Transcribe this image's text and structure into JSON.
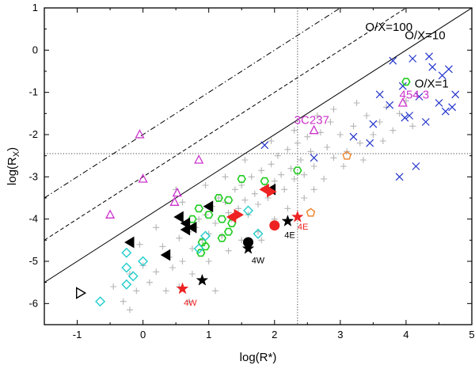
{
  "chart_data": {
    "type": "scatter",
    "title": "",
    "xlabel": "log(R*)",
    "ylabel": "log(R_X)",
    "ylabel_main": "log(R",
    "ylabel_sub": "X",
    "ylabel_close": ")",
    "xlim": [
      -1.5,
      5
    ],
    "ylim": [
      -6.5,
      1
    ],
    "xticks": [
      -1,
      0,
      1,
      2,
      3,
      4,
      5
    ],
    "xtick_labels": [
      "-1",
      "0",
      "1",
      "2",
      "3",
      "4",
      "5"
    ],
    "yticks": [
      1,
      0,
      -1,
      -2,
      -3,
      -4,
      -5,
      -6
    ],
    "ytick_labels": [
      "1",
      "0",
      "-1",
      "-2",
      "-3",
      "-4",
      "-5",
      "-6"
    ],
    "grid": false,
    "colors": {
      "gray": "#b4b4b4",
      "blue": "#2233cc",
      "magenta": "#cc33cc",
      "green": "#22cc22",
      "cyan": "#22cccc",
      "orange": "#ee8833",
      "red": "#ee2222",
      "black": "#000000"
    },
    "ratio_lines": [
      {
        "name": "O/X=100",
        "label": "O/X=100",
        "intercept": -2,
        "style": "dashdot"
      },
      {
        "name": "O/X=10",
        "label": "O/X=10",
        "intercept": -3,
        "style": "dashed"
      },
      {
        "name": "O/X=1",
        "label": "O/X=1",
        "intercept": -4,
        "style": "solid"
      }
    ],
    "ref_lines": {
      "vertical_x": 2.35,
      "horizontal_y": -2.45
    },
    "series": [
      {
        "name": "gray-plus",
        "marker": "plus",
        "color": "#b4b4b4",
        "points": [
          [
            -0.45,
            -5.6
          ],
          [
            -0.3,
            -5.95
          ],
          [
            -0.2,
            -5.3
          ],
          [
            -0.1,
            -5.7
          ],
          [
            0.0,
            -5.1
          ],
          [
            0.1,
            -5.5
          ],
          [
            0.2,
            -5.25
          ],
          [
            0.3,
            -4.65
          ],
          [
            0.4,
            -4.9
          ],
          [
            0.45,
            -5.15
          ],
          [
            0.55,
            -4.45
          ],
          [
            0.6,
            -5.0
          ],
          [
            0.7,
            -4.3
          ],
          [
            0.75,
            -4.7
          ],
          [
            0.8,
            -4.2
          ],
          [
            0.85,
            -4.0
          ],
          [
            0.9,
            -4.5
          ],
          [
            0.95,
            -3.9
          ],
          [
            1.0,
            -4.35
          ],
          [
            1.05,
            -3.7
          ],
          [
            1.1,
            -4.1
          ],
          [
            1.15,
            -3.5
          ],
          [
            1.2,
            -4.4
          ],
          [
            1.25,
            -3.6
          ],
          [
            1.3,
            -3.85
          ],
          [
            1.35,
            -4.0
          ],
          [
            1.4,
            -3.3
          ],
          [
            1.45,
            -3.75
          ],
          [
            1.5,
            -3.2
          ],
          [
            1.55,
            -3.55
          ],
          [
            1.6,
            -3.9
          ],
          [
            1.65,
            -3.0
          ],
          [
            1.7,
            -3.4
          ],
          [
            1.75,
            -3.65
          ],
          [
            1.8,
            -2.85
          ],
          [
            1.85,
            -3.25
          ],
          [
            1.9,
            -3.5
          ],
          [
            1.95,
            -2.7
          ],
          [
            2.0,
            -3.1
          ],
          [
            2.05,
            -2.5
          ],
          [
            2.1,
            -2.95
          ],
          [
            2.15,
            -3.3
          ],
          [
            2.2,
            -2.35
          ],
          [
            2.25,
            -2.8
          ],
          [
            2.3,
            -3.05
          ],
          [
            2.35,
            -2.2
          ],
          [
            2.4,
            -2.6
          ],
          [
            2.45,
            -2.95
          ],
          [
            2.5,
            -2.05
          ],
          [
            2.55,
            -2.4
          ],
          [
            2.6,
            -2.75
          ],
          [
            2.7,
            -1.95
          ],
          [
            2.8,
            -2.3
          ],
          [
            2.9,
            -2.55
          ],
          [
            3.0,
            -2.0
          ],
          [
            3.1,
            -2.4
          ],
          [
            3.2,
            -1.8
          ],
          [
            3.3,
            -2.2
          ],
          [
            3.4,
            -1.55
          ],
          [
            3.5,
            -2.0
          ],
          [
            3.6,
            -1.7
          ],
          [
            3.7,
            -1.35
          ],
          [
            3.8,
            -1.9
          ],
          [
            3.9,
            -1.5
          ],
          [
            4.0,
            -1.2
          ],
          [
            4.1,
            -1.8
          ],
          [
            0.35,
            -5.7
          ],
          [
            0.55,
            -5.6
          ],
          [
            0.75,
            -5.3
          ],
          [
            1.0,
            -5.0
          ],
          [
            1.3,
            -4.75
          ],
          [
            1.5,
            -4.5
          ],
          [
            1.75,
            -4.3
          ],
          [
            2.0,
            -4.0
          ],
          [
            2.2,
            -3.75
          ],
          [
            2.45,
            -3.5
          ],
          [
            2.6,
            -3.3
          ],
          [
            1.55,
            -2.6
          ],
          [
            1.25,
            -3.0
          ],
          [
            1.95,
            -2.15
          ],
          [
            2.3,
            -1.9
          ],
          [
            2.85,
            -1.7
          ],
          [
            0.95,
            -3.2
          ],
          [
            0.6,
            -3.6
          ],
          [
            0.2,
            -4.2
          ],
          [
            -0.05,
            -4.6
          ],
          [
            0.7,
            -5.95
          ],
          [
            1.1,
            -5.7
          ],
          [
            -0.2,
            -6.15
          ],
          [
            1.8,
            -4.5
          ],
          [
            2.75,
            -3.05
          ],
          [
            3.05,
            -2.75
          ],
          [
            3.35,
            -2.6
          ],
          [
            3.65,
            -2.15
          ],
          [
            0.5,
            -3.3
          ],
          [
            2.9,
            -1.4
          ],
          [
            3.25,
            -1.25
          ],
          [
            2.65,
            -1.55
          ]
        ]
      },
      {
        "name": "blue-x",
        "marker": "x",
        "color": "#2233cc",
        "points": [
          [
            3.8,
            -0.25
          ],
          [
            4.1,
            -0.2
          ],
          [
            4.35,
            -0.15
          ],
          [
            4.4,
            -0.4
          ],
          [
            4.55,
            -0.6
          ],
          [
            4.65,
            -0.45
          ],
          [
            3.95,
            -0.85
          ],
          [
            3.6,
            -1.05
          ],
          [
            4.2,
            -1.1
          ],
          [
            3.75,
            -1.3
          ],
          [
            4.5,
            -1.25
          ],
          [
            4.75,
            -1.05
          ],
          [
            4.05,
            -1.55
          ],
          [
            4.3,
            -1.7
          ],
          [
            4.6,
            -1.45
          ],
          [
            4.7,
            -1.35
          ],
          [
            3.98,
            -1.6
          ],
          [
            3.5,
            -1.75
          ],
          [
            3.2,
            -2.05
          ],
          [
            3.45,
            -2.2
          ],
          [
            4.15,
            -2.75
          ],
          [
            1.85,
            -2.25
          ],
          [
            2.6,
            -2.55
          ],
          [
            3.9,
            -3.0
          ]
        ]
      },
      {
        "name": "magenta-triangle",
        "marker": "triangle-up",
        "color": "#cc33cc",
        "points": [
          [
            -0.05,
            -2.0
          ],
          [
            0.0,
            -3.05
          ],
          [
            0.85,
            -2.6
          ],
          [
            0.52,
            -3.38
          ],
          [
            0.48,
            -3.6
          ],
          [
            -0.5,
            -3.9
          ],
          [
            2.6,
            -1.9
          ],
          [
            3.95,
            -1.25
          ]
        ]
      },
      {
        "name": "green-hexagon",
        "marker": "hexagon",
        "color": "#22cc22",
        "points": [
          [
            4.0,
            -0.75
          ],
          [
            2.35,
            -2.85
          ],
          [
            1.5,
            -3.05
          ],
          [
            1.85,
            -3.1
          ],
          [
            1.15,
            -3.5
          ],
          [
            1.3,
            -3.55
          ],
          [
            0.85,
            -3.75
          ],
          [
            0.75,
            -4.0
          ],
          [
            1.0,
            -3.9
          ],
          [
            1.2,
            -4.0
          ],
          [
            1.35,
            -4.1
          ],
          [
            1.3,
            -4.3
          ],
          [
            1.2,
            -4.45
          ],
          [
            0.9,
            -4.55
          ],
          [
            0.88,
            -4.8
          ],
          [
            0.95,
            -4.65
          ]
        ]
      },
      {
        "name": "cyan-diamond",
        "marker": "diamond",
        "color": "#22cccc",
        "points": [
          [
            1.6,
            -3.8
          ],
          [
            1.75,
            -4.35
          ],
          [
            0.95,
            -4.4
          ],
          [
            0.85,
            -4.7
          ],
          [
            -0.25,
            -4.8
          ],
          [
            0.0,
            -5.0
          ],
          [
            -0.25,
            -5.15
          ],
          [
            -0.15,
            -5.35
          ],
          [
            -0.25,
            -5.55
          ],
          [
            -0.65,
            -5.95
          ]
        ]
      },
      {
        "name": "black-tri-left",
        "marker": "triangle-left-filled",
        "color": "#000000",
        "points": [
          [
            1.95,
            -3.3
          ],
          [
            1.0,
            -3.7
          ],
          [
            0.55,
            -3.95
          ],
          [
            0.65,
            -4.1
          ],
          [
            0.75,
            -4.2
          ],
          [
            0.65,
            -4.25
          ],
          [
            -0.2,
            -4.55
          ],
          [
            0.35,
            -4.85
          ]
        ]
      },
      {
        "name": "red-tri-left",
        "marker": "triangle-left-filled",
        "color": "#ee2222",
        "points": [
          [
            1.85,
            -3.3
          ],
          [
            1.35,
            -3.95
          ]
        ]
      },
      {
        "name": "red-tri-right",
        "marker": "triangle-right-filled",
        "color": "#ee2222",
        "points": [
          [
            1.95,
            -3.35
          ],
          [
            1.45,
            -3.9
          ]
        ]
      },
      {
        "name": "black-tri-right-open",
        "marker": "triangle-right-open",
        "color": "#000000",
        "points": [
          [
            -0.95,
            -5.75
          ]
        ]
      },
      {
        "name": "orange-pentagon",
        "marker": "pentagon",
        "color": "#ee8833",
        "points": [
          [
            3.1,
            -2.5
          ],
          [
            2.55,
            -3.85
          ]
        ]
      },
      {
        "name": "red-circle",
        "marker": "circle-filled",
        "color": "#ee2222",
        "points": [
          [
            2.0,
            -4.15
          ]
        ]
      },
      {
        "name": "black-circle",
        "marker": "circle-filled",
        "color": "#000000",
        "points": [
          [
            1.6,
            -4.55
          ]
        ]
      },
      {
        "name": "red-star",
        "marker": "star",
        "color": "#ee2222",
        "points": [
          [
            2.35,
            -3.95
          ],
          [
            0.6,
            -5.65
          ]
        ]
      },
      {
        "name": "black-star",
        "marker": "star",
        "color": "#000000",
        "points": [
          [
            2.2,
            -4.05
          ],
          [
            1.6,
            -4.7
          ],
          [
            0.9,
            -5.45
          ]
        ]
      }
    ],
    "annotations": [
      {
        "text": "454.3",
        "x": 3.9,
        "y": -1.15,
        "color": "#cc33cc",
        "size": "large"
      },
      {
        "text": "3C237",
        "x": 2.3,
        "y": -1.75,
        "color": "#cc33cc",
        "size": "large"
      },
      {
        "text": "4E",
        "x": 2.35,
        "y": -4.25,
        "color": "#ee2222",
        "size": "small"
      },
      {
        "text": "4E",
        "x": 2.15,
        "y": -4.45,
        "color": "#000000",
        "size": "small"
      },
      {
        "text": "4W",
        "x": 1.65,
        "y": -5.05,
        "color": "#000000",
        "size": "small"
      },
      {
        "text": "4W",
        "x": 0.62,
        "y": -6.05,
        "color": "#ee2222",
        "size": "small"
      }
    ]
  }
}
